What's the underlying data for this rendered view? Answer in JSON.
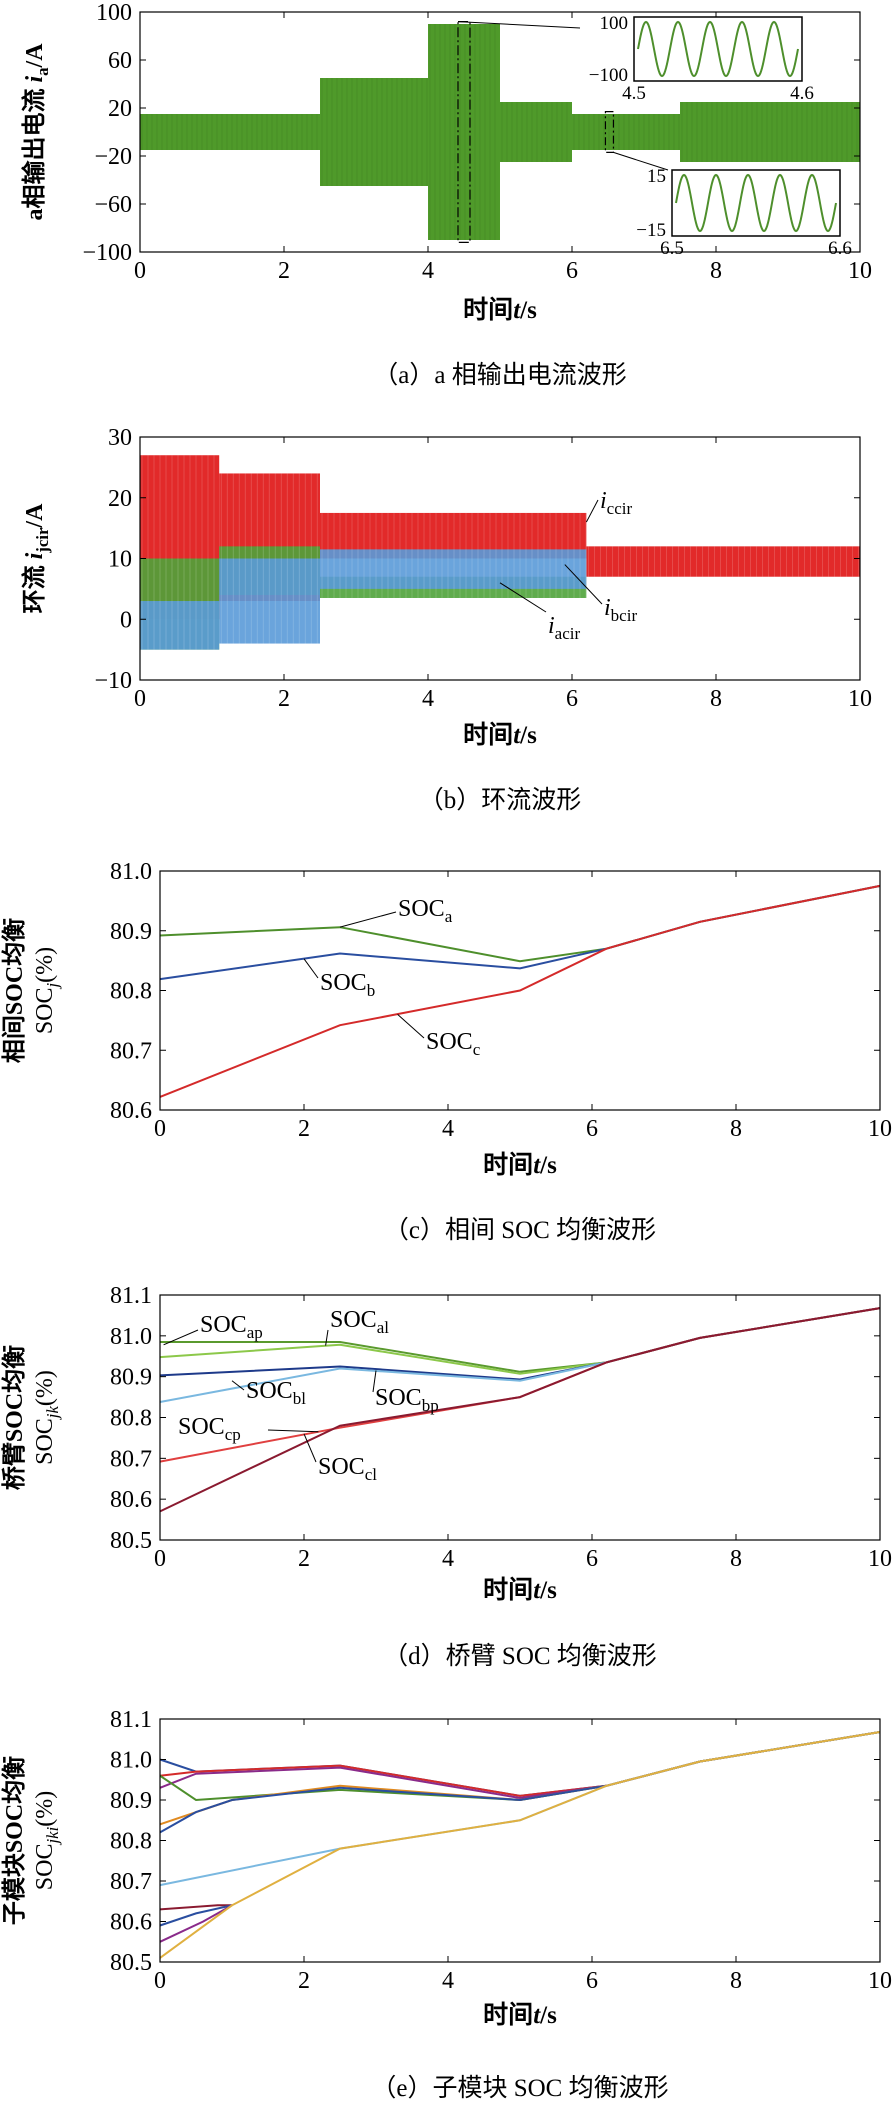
{
  "chart_data": [
    {
      "id": "a",
      "type": "line",
      "caption": "（a）a 相输出电流波形",
      "ylabel": [
        "a相输出电流 ",
        "i",
        "a",
        "/A"
      ],
      "xlabel": "时间t/s",
      "xlim": [
        0,
        10
      ],
      "ylim": [
        -100,
        100
      ],
      "xticks": [
        "0",
        "2",
        "4",
        "6",
        "8",
        "10"
      ],
      "yticks": [
        "100",
        "60",
        "20",
        "−20",
        "−60",
        "−100"
      ],
      "ytick_values": [
        100,
        60,
        20,
        -20,
        -60,
        -100
      ],
      "color": "#4f9a2a",
      "series": [
        {
          "t_start": 0,
          "t_end": 2.5,
          "amplitude": 15
        },
        {
          "t_start": 2.5,
          "t_end": 4.0,
          "amplitude": 45
        },
        {
          "t_start": 4.0,
          "t_end": 5.0,
          "amplitude": 90
        },
        {
          "t_start": 5.0,
          "t_end": 6.0,
          "amplitude": 25
        },
        {
          "t_start": 6.0,
          "t_end": 7.5,
          "amplitude": 15
        },
        {
          "t_start": 7.5,
          "t_end": 10.0,
          "amplitude": 25
        }
      ],
      "insets": [
        {
          "ytop": "100",
          "ybottom": "−100",
          "xleft": "4.5",
          "xright": "4.6"
        },
        {
          "ytop": "15",
          "ybottom": "−15",
          "xleft": "6.5",
          "xright": "6.6"
        }
      ]
    },
    {
      "id": "b",
      "type": "line",
      "caption": "（b）环流波形",
      "ylabel": [
        "环流 ",
        "i",
        "jcir",
        "/A"
      ],
      "xlabel": "时间t/s",
      "xlim": [
        0,
        10
      ],
      "ylim": [
        -10,
        30
      ],
      "xticks": [
        "0",
        "2",
        "4",
        "6",
        "8",
        "10"
      ],
      "yticks": [
        "30",
        "20",
        "10",
        "0",
        "−10"
      ],
      "ytick_values": [
        30,
        20,
        10,
        0,
        -10
      ],
      "series_labels": [
        {
          "name": "i",
          "sub": "ccir"
        },
        {
          "name": "i",
          "sub": "bcir"
        },
        {
          "name": "i",
          "sub": "acir"
        }
      ],
      "bands": [
        {
          "color": "#e01818",
          "segments": [
            [
              0,
              1.1,
              0,
              27
            ],
            [
              1.1,
              2.5,
              3,
              24
            ],
            [
              2.5,
              6.2,
              10,
              17.5
            ],
            [
              6.2,
              10,
              7,
              12
            ]
          ]
        },
        {
          "color": "#4fa33a",
          "segments": [
            [
              0,
              1.1,
              -5,
              10
            ],
            [
              1.1,
              2.5,
              4,
              12
            ],
            [
              2.5,
              6.2,
              3.5,
              7
            ]
          ]
        },
        {
          "color": "#5a9ad8",
          "segments": [
            [
              0,
              1.1,
              -5,
              3
            ],
            [
              1.1,
              2.5,
              -4,
              10
            ],
            [
              2.5,
              6.2,
              5,
              11.5
            ]
          ]
        }
      ]
    },
    {
      "id": "c",
      "type": "line",
      "caption": "（c）相间 SOC 均衡波形",
      "ylabel_lines": [
        "相间SOC均衡",
        "SOC",
        "j",
        "(%)"
      ],
      "xlabel": "时间t/s",
      "xlim": [
        0,
        10
      ],
      "ylim": [
        80.6,
        81.0
      ],
      "xticks": [
        "0",
        "2",
        "4",
        "6",
        "8",
        "10"
      ],
      "yticks": [
        "81.0",
        "80.9",
        "80.8",
        "80.7",
        "80.6"
      ],
      "ytick_values": [
        81.0,
        80.9,
        80.8,
        80.7,
        80.6
      ],
      "series": [
        {
          "name": "SOC",
          "sub": "a",
          "color": "#4e8f2c",
          "x": [
            0,
            2.5,
            5,
            6.2,
            7.5,
            10
          ],
          "y": [
            80.892,
            80.906,
            80.849,
            80.87,
            80.915,
            80.975
          ]
        },
        {
          "name": "SOC",
          "sub": "b",
          "color": "#2a4ea0",
          "x": [
            0,
            2.5,
            5,
            6.2,
            7.5,
            10
          ],
          "y": [
            80.819,
            80.862,
            80.837,
            80.87,
            80.915,
            80.975
          ]
        },
        {
          "name": "SOC",
          "sub": "c",
          "color": "#d42a2a",
          "x": [
            0,
            2.5,
            5,
            6.2,
            7.5,
            10
          ],
          "y": [
            80.622,
            80.742,
            80.8,
            80.87,
            80.915,
            80.975
          ]
        }
      ]
    },
    {
      "id": "d",
      "type": "line",
      "caption": "（d）桥臂 SOC 均衡波形",
      "ylabel_lines": [
        "桥臂SOC均衡",
        "SOC",
        "jk",
        "(%)"
      ],
      "xlabel": "时间t/s",
      "xlim": [
        0,
        10
      ],
      "ylim": [
        80.5,
        81.1
      ],
      "xticks": [
        "0",
        "2",
        "4",
        "6",
        "8",
        "10"
      ],
      "yticks": [
        "81.1",
        "81.0",
        "80.9",
        "80.8",
        "80.7",
        "80.6",
        "80.5"
      ],
      "ytick_values": [
        81.1,
        81.0,
        80.9,
        80.8,
        80.7,
        80.6,
        80.5
      ],
      "series": [
        {
          "name": "SOC",
          "sub": "ap",
          "color": "#5a9a2e",
          "x": [
            0,
            2.5,
            5,
            6.2,
            7.5,
            10
          ],
          "y": [
            80.985,
            80.985,
            80.912,
            80.935,
            80.995,
            81.068
          ]
        },
        {
          "name": "SOC",
          "sub": "al",
          "color": "#8cc84a",
          "x": [
            0,
            2.5,
            5,
            6.2,
            7.5,
            10
          ],
          "y": [
            80.948,
            80.978,
            80.907,
            80.935,
            80.995,
            81.068
          ]
        },
        {
          "name": "SOC",
          "sub": "bp",
          "color": "#1e3a8a",
          "x": [
            0,
            2.5,
            5,
            6.2,
            7.5,
            10
          ],
          "y": [
            80.903,
            80.925,
            80.893,
            80.935,
            80.995,
            81.068
          ]
        },
        {
          "name": "SOC",
          "sub": "bl",
          "color": "#7ab8e0",
          "x": [
            0,
            2.5,
            5,
            6.2,
            7.5,
            10
          ],
          "y": [
            80.838,
            80.92,
            80.89,
            80.935,
            80.995,
            81.068
          ]
        },
        {
          "name": "SOC",
          "sub": "cp",
          "color": "#e04040",
          "x": [
            0,
            2.5,
            5,
            6.2,
            7.5,
            10
          ],
          "y": [
            80.692,
            80.775,
            80.85,
            80.935,
            80.995,
            81.068
          ]
        },
        {
          "name": "SOC",
          "sub": "cl",
          "color": "#8a1a30",
          "x": [
            0,
            2.5,
            5,
            6.2,
            7.5,
            10
          ],
          "y": [
            80.57,
            80.78,
            80.85,
            80.935,
            80.995,
            81.068
          ]
        }
      ]
    },
    {
      "id": "e",
      "type": "line",
      "caption": "（e）子模块 SOC 均衡波形",
      "ylabel_lines": [
        "子模块SOC均衡",
        "SOC",
        "jki",
        "(%)"
      ],
      "xlabel": "时间t/s",
      "xlim": [
        0,
        10
      ],
      "ylim": [
        80.5,
        81.1
      ],
      "xticks": [
        "0",
        "2",
        "4",
        "6",
        "8",
        "10"
      ],
      "yticks": [
        "81.1",
        "81.0",
        "80.9",
        "80.8",
        "80.7",
        "80.6",
        "80.5"
      ],
      "ytick_values": [
        81.1,
        81.0,
        80.9,
        80.8,
        80.7,
        80.6,
        80.5
      ],
      "series": [
        {
          "color": "#2a4ea0",
          "x": [
            0,
            0.5,
            2.5,
            5,
            6.2,
            7.5,
            10
          ],
          "y": [
            81.0,
            80.97,
            80.985,
            80.91,
            80.935,
            80.995,
            81.068
          ]
        },
        {
          "color": "#d42a2a",
          "x": [
            0,
            0.5,
            2.5,
            5,
            6.2,
            7.5,
            10
          ],
          "y": [
            80.96,
            80.97,
            80.985,
            80.91,
            80.935,
            80.995,
            81.068
          ]
        },
        {
          "color": "#8a2a8a",
          "x": [
            0,
            0.5,
            2.5,
            5,
            6.2,
            7.5,
            10
          ],
          "y": [
            80.93,
            80.965,
            80.98,
            80.905,
            80.935,
            80.995,
            81.068
          ]
        },
        {
          "color": "#4e8f2c",
          "x": [
            0,
            0.5,
            2.5,
            5,
            6.2,
            7.5,
            10
          ],
          "y": [
            80.96,
            80.9,
            80.925,
            80.9,
            80.935,
            80.995,
            81.068
          ]
        },
        {
          "color": "#e08a20",
          "x": [
            0,
            1.0,
            2.5,
            5,
            6.2,
            7.5,
            10
          ],
          "y": [
            80.84,
            80.9,
            80.935,
            80.9,
            80.935,
            80.995,
            81.068
          ]
        },
        {
          "color": "#2a4ea0",
          "x": [
            0,
            0.5,
            1.0,
            2.5,
            5,
            6.2,
            7.5,
            10
          ],
          "y": [
            80.82,
            80.87,
            80.9,
            80.93,
            80.9,
            80.935,
            80.995,
            81.068
          ]
        },
        {
          "color": "#7ab8e0",
          "x": [
            0,
            2.5,
            5,
            6.2,
            7.5,
            10
          ],
          "y": [
            80.69,
            80.78,
            80.85,
            80.935,
            80.995,
            81.068
          ]
        },
        {
          "color": "#8a1a30",
          "x": [
            0,
            0.8,
            1.0
          ],
          "y": [
            80.63,
            80.64,
            80.64
          ]
        },
        {
          "color": "#2a4ea0",
          "x": [
            0,
            0.5,
            1.0
          ],
          "y": [
            80.59,
            80.62,
            80.64
          ]
        },
        {
          "color": "#8a2a8a",
          "x": [
            0,
            0.6,
            1.0
          ],
          "y": [
            80.55,
            80.6,
            80.64
          ]
        },
        {
          "color": "#e0b040",
          "x": [
            0,
            1.0,
            2.5,
            5,
            6.2,
            7.5,
            10
          ],
          "y": [
            80.51,
            80.64,
            80.78,
            80.85,
            80.935,
            80.995,
            81.068
          ]
        }
      ]
    }
  ]
}
